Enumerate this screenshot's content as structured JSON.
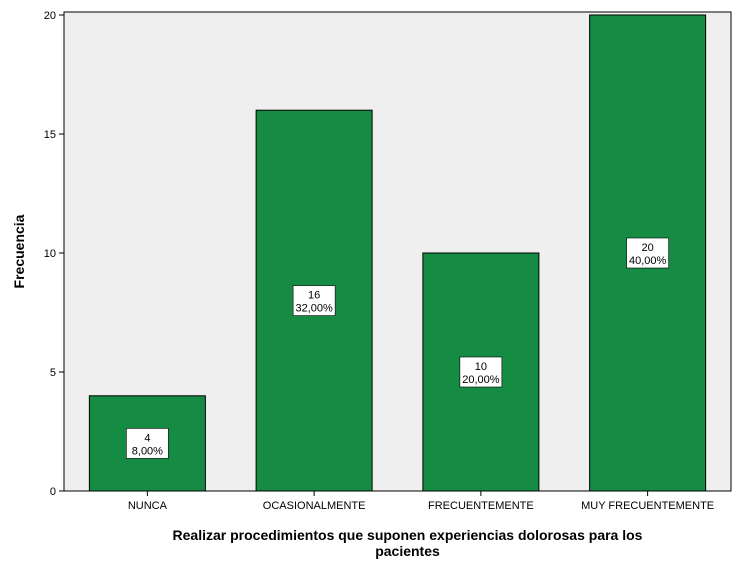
{
  "chart_data": {
    "type": "bar",
    "categories": [
      "NUNCA",
      "OCASIONALMENTE",
      "FRECUENTEMENTE",
      "MUY FRECUENTEMENTE"
    ],
    "values": [
      4,
      16,
      10,
      20
    ],
    "data_labels": [
      {
        "count": "4",
        "percent": "8,00%"
      },
      {
        "count": "16",
        "percent": "32,00%"
      },
      {
        "count": "10",
        "percent": "20,00%"
      },
      {
        "count": "20",
        "percent": "40,00%"
      }
    ],
    "xlabel_lines": [
      "Realizar procedimientos que suponen experiencias dolorosas para los",
      "pacientes"
    ],
    "ylabel": "Frecuencia",
    "ylim": [
      0,
      20
    ],
    "yticks": [
      0,
      5,
      10,
      15,
      20
    ],
    "grid": false,
    "legend": "none",
    "colors": {
      "bar": "#158b43",
      "bar_edge": "#000000",
      "plot_background": "#efefef"
    }
  }
}
